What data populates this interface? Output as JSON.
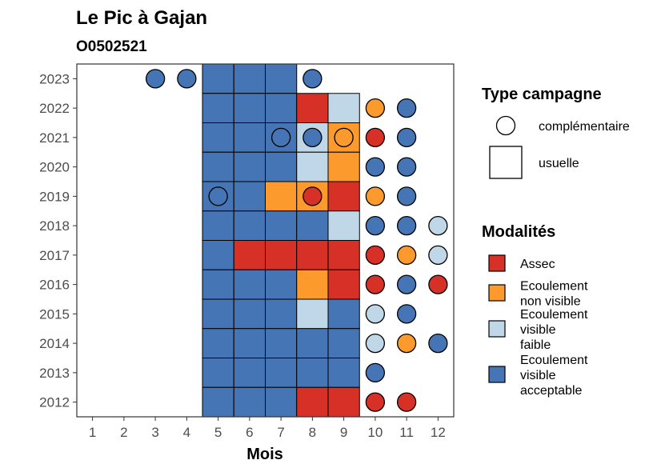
{
  "chart_data": {
    "type": "heatmap",
    "title": "Le Pic à Gajan",
    "subtitle": "O0502521",
    "xlabel": "Mois",
    "ylabel": "",
    "x_ticks": [
      1,
      2,
      3,
      4,
      5,
      6,
      7,
      8,
      9,
      10,
      11,
      12
    ],
    "y_ticks": [
      2012,
      2013,
      2014,
      2015,
      2016,
      2017,
      2018,
      2019,
      2020,
      2021,
      2022,
      2023
    ],
    "xlim": [
      0.5,
      12.5
    ],
    "ylim": [
      2011.5,
      2023.5
    ],
    "grid": false,
    "legend_position": "right",
    "colors": {
      "Assec": "#d73027",
      "Ecoulement non visible": "#fc9a2d",
      "Ecoulement visible faible": "#bfd7e6",
      "Ecoulement visible acceptable": "#4575b4"
    },
    "legend_type": {
      "title": "Type campagne",
      "entries": [
        {
          "label": "complémentaire",
          "shape": "circle"
        },
        {
          "label": "usuelle",
          "shape": "square"
        }
      ]
    },
    "legend_modalites": {
      "title": "Modalités",
      "entries": [
        {
          "label_lines": [
            "Assec"
          ],
          "modalite": "Assec"
        },
        {
          "label_lines": [
            "Ecoulement",
            "non visible"
          ],
          "modalite": "Ecoulement non visible"
        },
        {
          "label_lines": [
            "Ecoulement",
            "visible",
            "faible"
          ],
          "modalite": "Ecoulement visible faible"
        },
        {
          "label_lines": [
            "Ecoulement",
            "visible",
            "acceptable"
          ],
          "modalite": "Ecoulement visible acceptable"
        }
      ]
    },
    "usuelle": [
      {
        "year": 2023,
        "month": 5,
        "modalite": "Ecoulement visible acceptable"
      },
      {
        "year": 2023,
        "month": 6,
        "modalite": "Ecoulement visible acceptable"
      },
      {
        "year": 2023,
        "month": 7,
        "modalite": "Ecoulement visible acceptable"
      },
      {
        "year": 2022,
        "month": 5,
        "modalite": "Ecoulement visible acceptable"
      },
      {
        "year": 2022,
        "month": 6,
        "modalite": "Ecoulement visible acceptable"
      },
      {
        "year": 2022,
        "month": 7,
        "modalite": "Ecoulement visible acceptable"
      },
      {
        "year": 2022,
        "month": 8,
        "modalite": "Assec"
      },
      {
        "year": 2022,
        "month": 9,
        "modalite": "Ecoulement visible faible"
      },
      {
        "year": 2021,
        "month": 5,
        "modalite": "Ecoulement visible acceptable"
      },
      {
        "year": 2021,
        "month": 6,
        "modalite": "Ecoulement visible acceptable"
      },
      {
        "year": 2021,
        "month": 7,
        "modalite": "Ecoulement visible acceptable"
      },
      {
        "year": 2021,
        "month": 8,
        "modalite": "Ecoulement visible faible"
      },
      {
        "year": 2021,
        "month": 9,
        "modalite": "Ecoulement non visible"
      },
      {
        "year": 2020,
        "month": 5,
        "modalite": "Ecoulement visible acceptable"
      },
      {
        "year": 2020,
        "month": 6,
        "modalite": "Ecoulement visible acceptable"
      },
      {
        "year": 2020,
        "month": 7,
        "modalite": "Ecoulement visible acceptable"
      },
      {
        "year": 2020,
        "month": 8,
        "modalite": "Ecoulement visible faible"
      },
      {
        "year": 2020,
        "month": 9,
        "modalite": "Ecoulement non visible"
      },
      {
        "year": 2019,
        "month": 5,
        "modalite": "Ecoulement visible acceptable"
      },
      {
        "year": 2019,
        "month": 6,
        "modalite": "Ecoulement visible acceptable"
      },
      {
        "year": 2019,
        "month": 7,
        "modalite": "Ecoulement non visible"
      },
      {
        "year": 2019,
        "month": 8,
        "modalite": "Ecoulement non visible"
      },
      {
        "year": 2019,
        "month": 9,
        "modalite": "Assec"
      },
      {
        "year": 2018,
        "month": 5,
        "modalite": "Ecoulement visible acceptable"
      },
      {
        "year": 2018,
        "month": 6,
        "modalite": "Ecoulement visible acceptable"
      },
      {
        "year": 2018,
        "month": 7,
        "modalite": "Ecoulement visible acceptable"
      },
      {
        "year": 2018,
        "month": 8,
        "modalite": "Ecoulement visible acceptable"
      },
      {
        "year": 2018,
        "month": 9,
        "modalite": "Ecoulement visible faible"
      },
      {
        "year": 2017,
        "month": 5,
        "modalite": "Ecoulement visible acceptable"
      },
      {
        "year": 2017,
        "month": 6,
        "modalite": "Assec"
      },
      {
        "year": 2017,
        "month": 7,
        "modalite": "Assec"
      },
      {
        "year": 2017,
        "month": 8,
        "modalite": "Assec"
      },
      {
        "year": 2017,
        "month": 9,
        "modalite": "Assec"
      },
      {
        "year": 2016,
        "month": 5,
        "modalite": "Ecoulement visible acceptable"
      },
      {
        "year": 2016,
        "month": 6,
        "modalite": "Ecoulement visible acceptable"
      },
      {
        "year": 2016,
        "month": 7,
        "modalite": "Ecoulement visible acceptable"
      },
      {
        "year": 2016,
        "month": 8,
        "modalite": "Ecoulement non visible"
      },
      {
        "year": 2016,
        "month": 9,
        "modalite": "Assec"
      },
      {
        "year": 2015,
        "month": 5,
        "modalite": "Ecoulement visible acceptable"
      },
      {
        "year": 2015,
        "month": 6,
        "modalite": "Ecoulement visible acceptable"
      },
      {
        "year": 2015,
        "month": 7,
        "modalite": "Ecoulement visible acceptable"
      },
      {
        "year": 2015,
        "month": 8,
        "modalite": "Ecoulement visible faible"
      },
      {
        "year": 2015,
        "month": 9,
        "modalite": "Ecoulement visible acceptable"
      },
      {
        "year": 2014,
        "month": 5,
        "modalite": "Ecoulement visible acceptable"
      },
      {
        "year": 2014,
        "month": 6,
        "modalite": "Ecoulement visible acceptable"
      },
      {
        "year": 2014,
        "month": 7,
        "modalite": "Ecoulement visible acceptable"
      },
      {
        "year": 2014,
        "month": 8,
        "modalite": "Ecoulement visible acceptable"
      },
      {
        "year": 2014,
        "month": 9,
        "modalite": "Ecoulement visible acceptable"
      },
      {
        "year": 2013,
        "month": 5,
        "modalite": "Ecoulement visible acceptable"
      },
      {
        "year": 2013,
        "month": 6,
        "modalite": "Ecoulement visible acceptable"
      },
      {
        "year": 2013,
        "month": 7,
        "modalite": "Ecoulement visible acceptable"
      },
      {
        "year": 2013,
        "month": 8,
        "modalite": "Ecoulement visible acceptable"
      },
      {
        "year": 2013,
        "month": 9,
        "modalite": "Ecoulement visible acceptable"
      },
      {
        "year": 2012,
        "month": 5,
        "modalite": "Ecoulement visible acceptable"
      },
      {
        "year": 2012,
        "month": 6,
        "modalite": "Ecoulement visible acceptable"
      },
      {
        "year": 2012,
        "month": 7,
        "modalite": "Ecoulement visible acceptable"
      },
      {
        "year": 2012,
        "month": 8,
        "modalite": "Assec"
      },
      {
        "year": 2012,
        "month": 9,
        "modalite": "Assec"
      }
    ],
    "complementaire": [
      {
        "year": 2023,
        "month": 3,
        "modalite": "Ecoulement visible acceptable"
      },
      {
        "year": 2023,
        "month": 4,
        "modalite": "Ecoulement visible acceptable"
      },
      {
        "year": 2023,
        "month": 8,
        "modalite": "Ecoulement visible acceptable"
      },
      {
        "year": 2022,
        "month": 10,
        "modalite": "Ecoulement non visible"
      },
      {
        "year": 2022,
        "month": 11,
        "modalite": "Ecoulement visible acceptable"
      },
      {
        "year": 2021,
        "month": 7,
        "modalite": "Ecoulement visible acceptable"
      },
      {
        "year": 2021,
        "month": 8,
        "modalite": "Ecoulement visible acceptable"
      },
      {
        "year": 2021,
        "month": 9,
        "modalite": "Ecoulement non visible"
      },
      {
        "year": 2021,
        "month": 10,
        "modalite": "Assec"
      },
      {
        "year": 2021,
        "month": 11,
        "modalite": "Ecoulement visible acceptable"
      },
      {
        "year": 2020,
        "month": 10,
        "modalite": "Ecoulement visible acceptable"
      },
      {
        "year": 2020,
        "month": 11,
        "modalite": "Ecoulement visible acceptable"
      },
      {
        "year": 2019,
        "month": 5,
        "modalite": "Ecoulement visible acceptable"
      },
      {
        "year": 2019,
        "month": 8,
        "modalite": "Assec"
      },
      {
        "year": 2019,
        "month": 10,
        "modalite": "Ecoulement non visible"
      },
      {
        "year": 2019,
        "month": 11,
        "modalite": "Ecoulement visible acceptable"
      },
      {
        "year": 2018,
        "month": 10,
        "modalite": "Ecoulement visible acceptable"
      },
      {
        "year": 2018,
        "month": 11,
        "modalite": "Ecoulement visible acceptable"
      },
      {
        "year": 2018,
        "month": 12,
        "modalite": "Ecoulement visible faible"
      },
      {
        "year": 2017,
        "month": 10,
        "modalite": "Assec"
      },
      {
        "year": 2017,
        "month": 11,
        "modalite": "Ecoulement non visible"
      },
      {
        "year": 2017,
        "month": 12,
        "modalite": "Ecoulement visible faible"
      },
      {
        "year": 2016,
        "month": 10,
        "modalite": "Assec"
      },
      {
        "year": 2016,
        "month": 11,
        "modalite": "Ecoulement visible acceptable"
      },
      {
        "year": 2016,
        "month": 12,
        "modalite": "Assec"
      },
      {
        "year": 2015,
        "month": 10,
        "modalite": "Ecoulement visible faible"
      },
      {
        "year": 2015,
        "month": 11,
        "modalite": "Ecoulement visible acceptable"
      },
      {
        "year": 2014,
        "month": 10,
        "modalite": "Ecoulement visible faible"
      },
      {
        "year": 2014,
        "month": 11,
        "modalite": "Ecoulement non visible"
      },
      {
        "year": 2014,
        "month": 12,
        "modalite": "Ecoulement visible acceptable"
      },
      {
        "year": 2013,
        "month": 10,
        "modalite": "Ecoulement visible acceptable"
      },
      {
        "year": 2012,
        "month": 10,
        "modalite": "Assec"
      },
      {
        "year": 2012,
        "month": 11,
        "modalite": "Assec"
      }
    ]
  }
}
